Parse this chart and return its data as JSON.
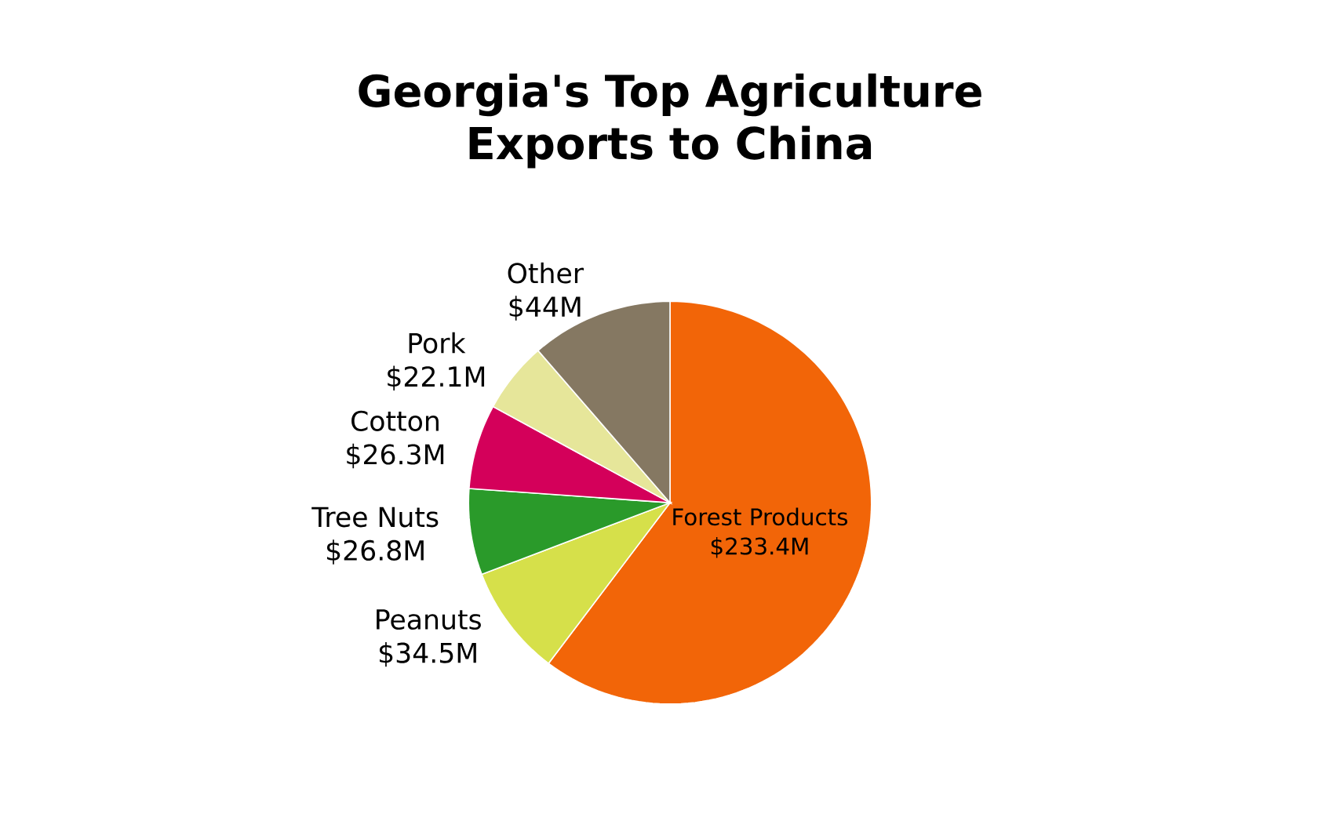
{
  "chart_data": {
    "type": "pie",
    "title": "Georgia's Top Agriculture Exports to China",
    "categories": [
      "Forest Products",
      "Peanuts",
      "Tree Nuts",
      "Cotton",
      "Pork",
      "Other"
    ],
    "values": [
      233.4,
      34.5,
      26.8,
      26.3,
      22.1,
      44
    ],
    "value_labels": [
      "$233.4M",
      "$34.5M",
      "$26.8M",
      "$26.3M",
      "$22.1M",
      "$44M"
    ],
    "colors": [
      "#f26508",
      "#d6e04a",
      "#2a9a2a",
      "#d4005a",
      "#e6e69a",
      "#857862"
    ]
  }
}
